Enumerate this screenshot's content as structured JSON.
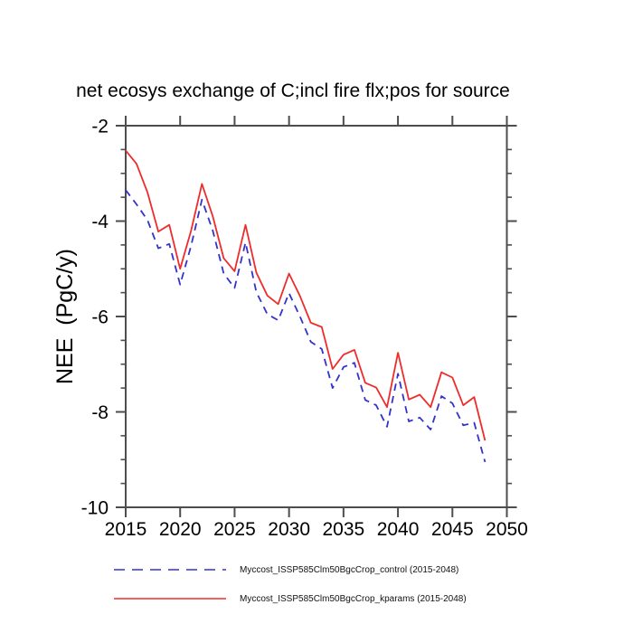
{
  "title": "net ecosys exchange of C;incl fire flx;pos for source",
  "ylabel": "NEE  (PgC/y)",
  "legend": [
    {
      "label": "Myccost_ISSP585Clm50BgcCrop_control (2015-2048)",
      "color": "#3333cc",
      "style": "dashed"
    },
    {
      "label": "Myccost_ISSP585Clm50BgcCrop_kparams (2015-2048)",
      "color": "#ee2c2c",
      "style": "solid"
    }
  ],
  "colors": {
    "axis": "#4d4d4d",
    "background": "#ffffff",
    "control_line": "#3333cc",
    "kparams_line": "#ee2c2c"
  },
  "chart_data": {
    "type": "line",
    "title": "net ecosys exchange of C;incl fire flx;pos for source",
    "xlabel": "",
    "ylabel": "NEE  (PgC/y)",
    "xlim": [
      2015,
      2050
    ],
    "ylim": [
      -10,
      -2
    ],
    "x_ticks": [
      2015,
      2020,
      2025,
      2030,
      2035,
      2040,
      2045,
      2050
    ],
    "y_ticks": [
      -2,
      -4,
      -6,
      -8,
      -10
    ],
    "y_minor_step": 0.5,
    "grid": false,
    "legend_position": "bottom",
    "x": [
      2015,
      2016,
      2017,
      2018,
      2019,
      2020,
      2021,
      2022,
      2023,
      2024,
      2025,
      2026,
      2027,
      2028,
      2029,
      2030,
      2031,
      2032,
      2033,
      2034,
      2035,
      2036,
      2037,
      2038,
      2039,
      2040,
      2041,
      2042,
      2043,
      2044,
      2045,
      2046,
      2047,
      2048
    ],
    "series": [
      {
        "name": "Myccost_ISSP585Clm50BgcCrop_control (2015-2048)",
        "color": "#3333cc",
        "dashed": true,
        "values": [
          -3.35,
          -3.65,
          -3.98,
          -4.57,
          -4.48,
          -5.33,
          -4.52,
          -3.55,
          -4.2,
          -5.1,
          -5.4,
          -4.45,
          -5.49,
          -5.95,
          -6.08,
          -5.51,
          -6.0,
          -6.53,
          -6.68,
          -7.5,
          -7.06,
          -6.97,
          -7.75,
          -7.86,
          -8.31,
          -7.2,
          -8.2,
          -8.12,
          -8.37,
          -7.67,
          -7.82,
          -8.28,
          -8.23,
          -9.05
        ]
      },
      {
        "name": "Myccost_ISSP585Clm50BgcCrop_kparams (2015-2048)",
        "color": "#ee2c2c",
        "dashed": false,
        "values": [
          -2.52,
          -2.8,
          -3.4,
          -4.22,
          -4.08,
          -5.0,
          -4.2,
          -3.22,
          -3.9,
          -4.78,
          -5.05,
          -4.08,
          -5.08,
          -5.56,
          -5.74,
          -5.1,
          -5.57,
          -6.13,
          -6.22,
          -7.1,
          -6.8,
          -6.7,
          -7.39,
          -7.49,
          -7.9,
          -6.76,
          -7.74,
          -7.64,
          -7.9,
          -7.17,
          -7.28,
          -7.86,
          -7.69,
          -8.6
        ]
      }
    ]
  }
}
